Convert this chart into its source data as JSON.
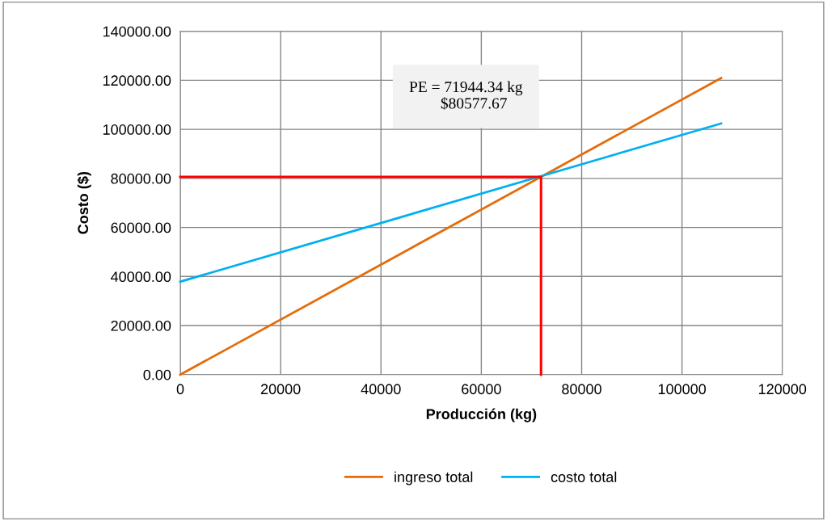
{
  "chart_data": {
    "type": "line",
    "xlabel": "Producción (kg)",
    "ylabel": "Costo ($)",
    "xlim": [
      0,
      120000
    ],
    "xticks": [
      0,
      20000,
      40000,
      60000,
      80000,
      100000,
      120000
    ],
    "ylim": [
      0,
      140000
    ],
    "yticks": [
      {
        "value": 0,
        "label": "0.00"
      },
      {
        "value": 20000,
        "label": "20000.00"
      },
      {
        "value": 40000,
        "label": "40000.00"
      },
      {
        "value": 60000,
        "label": "60000.00"
      },
      {
        "value": 80000,
        "label": "80000.00"
      },
      {
        "value": 100000,
        "label": "100000.00"
      },
      {
        "value": 120000,
        "label": "120000.00"
      },
      {
        "value": 140000,
        "label": "140000.00"
      }
    ],
    "grid": true,
    "legend": "bottom",
    "marker": "none",
    "line_style": "solid",
    "series": [
      {
        "name": "ingreso total",
        "color": "#e46c0a",
        "x": [
          0,
          107800
        ],
        "values": [
          0,
          120900
        ]
      },
      {
        "name": "costo total",
        "color": "#00b0f0",
        "x": [
          0,
          107800
        ],
        "values": [
          37900,
          102400
        ]
      },
      {
        "color": "#ff0000",
        "x": [
          0,
          71900,
          71900
        ],
        "values": [
          80600,
          80600,
          0
        ]
      }
    ],
    "annotations": [
      "PE = 71944.34 kg\n        $80577.67"
    ]
  }
}
